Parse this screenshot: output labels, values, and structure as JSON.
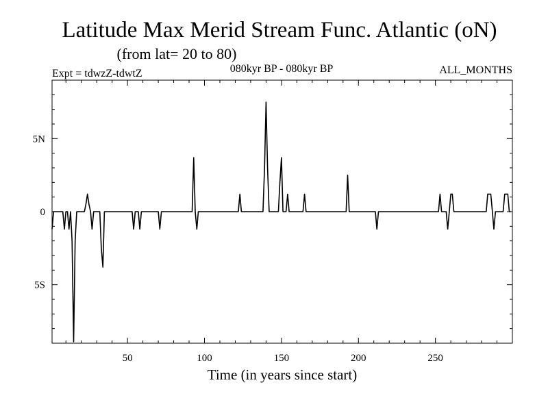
{
  "chart_data": {
    "type": "line",
    "title": "Latitude Max Merid Stream Func. Atlantic (oN)",
    "subtitle": "(from lat= 20 to 80)",
    "header_left": "Expt = tdwzZ-tdwtZ",
    "header_center": "080kyr BP - 080kyr BP",
    "header_right": "ALL_MONTHS",
    "xlabel": "Time (in years since start)",
    "ylabel": "",
    "xlim": [
      1,
      300
    ],
    "ylim": [
      -9,
      9
    ],
    "x_ticks": [
      {
        "value": 50,
        "label": "50"
      },
      {
        "value": 100,
        "label": "100"
      },
      {
        "value": 150,
        "label": "150"
      },
      {
        "value": 200,
        "label": "200"
      },
      {
        "value": 250,
        "label": "250"
      }
    ],
    "y_ticks": [
      {
        "value": 5,
        "label": "5N"
      },
      {
        "value": 0,
        "label": "0"
      },
      {
        "value": -5,
        "label": "5S"
      }
    ],
    "series": [
      {
        "color": "#000000",
        "points": [
          [
            1,
            -1.2
          ],
          [
            2,
            0
          ],
          [
            8,
            0
          ],
          [
            9,
            -1.2
          ],
          [
            10,
            0
          ],
          [
            11,
            0
          ],
          [
            12,
            -1.2
          ],
          [
            13,
            0
          ],
          [
            14,
            -2
          ],
          [
            15,
            -8.9
          ],
          [
            16,
            -2
          ],
          [
            17,
            0
          ],
          [
            22,
            0
          ],
          [
            23,
            0.5
          ],
          [
            24,
            1.2
          ],
          [
            25,
            0.5
          ],
          [
            26,
            0
          ],
          [
            27,
            -1.2
          ],
          [
            28,
            0
          ],
          [
            32,
            0
          ],
          [
            33,
            -2.5
          ],
          [
            34,
            -3.8
          ],
          [
            35,
            0
          ],
          [
            53,
            0
          ],
          [
            54,
            -1.2
          ],
          [
            55,
            0
          ],
          [
            57,
            0
          ],
          [
            58,
            -1.2
          ],
          [
            59,
            0
          ],
          [
            70,
            0
          ],
          [
            71,
            -1.2
          ],
          [
            72,
            0
          ],
          [
            92,
            0
          ],
          [
            93,
            3.7
          ],
          [
            94,
            0
          ],
          [
            95,
            -1.2
          ],
          [
            96,
            0
          ],
          [
            122,
            0
          ],
          [
            123,
            1.2
          ],
          [
            124,
            0
          ],
          [
            138,
            0
          ],
          [
            139,
            3
          ],
          [
            140,
            7.5
          ],
          [
            141,
            3
          ],
          [
            142,
            0
          ],
          [
            148,
            0
          ],
          [
            149,
            2
          ],
          [
            150,
            3.7
          ],
          [
            151,
            0
          ],
          [
            153,
            0
          ],
          [
            154,
            1.2
          ],
          [
            155,
            0
          ],
          [
            164,
            0
          ],
          [
            165,
            1.2
          ],
          [
            166,
            0
          ],
          [
            192,
            0
          ],
          [
            193,
            2.5
          ],
          [
            194,
            0
          ],
          [
            211,
            0
          ],
          [
            212,
            -1.2
          ],
          [
            213,
            0
          ],
          [
            252,
            0
          ],
          [
            253,
            1.2
          ],
          [
            254,
            0
          ],
          [
            257,
            0
          ],
          [
            258,
            -1.2
          ],
          [
            259,
            0
          ],
          [
            260,
            1.2
          ],
          [
            261,
            1.2
          ],
          [
            262,
            0
          ],
          [
            283,
            0
          ],
          [
            284,
            1.2
          ],
          [
            286,
            1.2
          ],
          [
            287,
            0
          ],
          [
            288,
            -1.2
          ],
          [
            289,
            0
          ],
          [
            294,
            0
          ],
          [
            295,
            1.2
          ],
          [
            297,
            1.2
          ],
          [
            298,
            0
          ],
          [
            299,
            0
          ]
        ]
      }
    ]
  }
}
